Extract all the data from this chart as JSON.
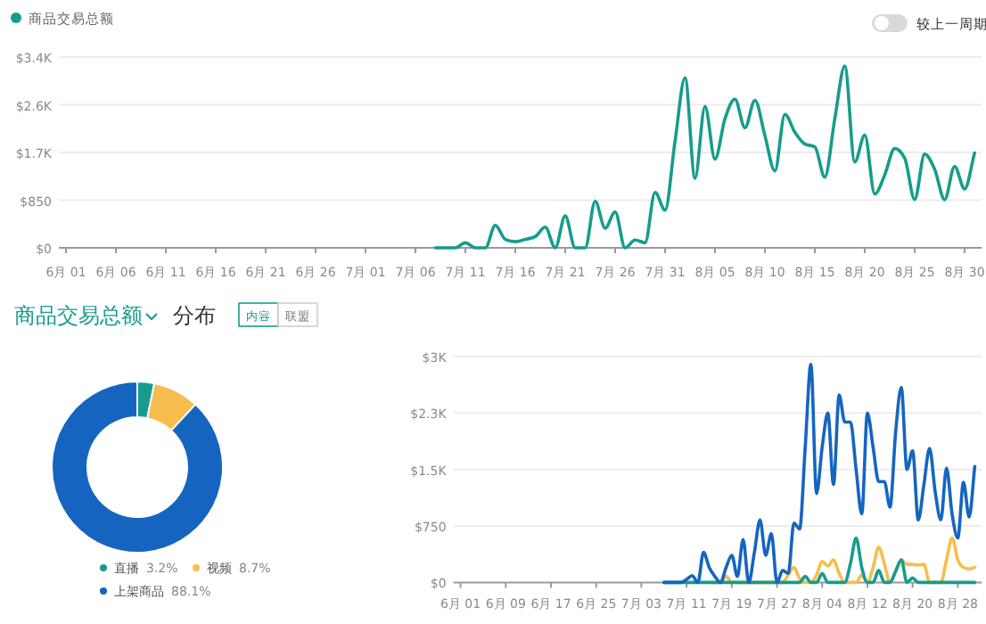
{
  "chart_data": [
    {
      "type": "line",
      "legend": "top left",
      "grid": "y",
      "annotations": [
        "较上一周期"
      ],
      "categories": [
        "6月 01",
        null,
        null,
        null,
        null,
        "6月 06",
        null,
        null,
        null,
        null,
        "6月 11",
        null,
        null,
        null,
        null,
        "6月 16",
        null,
        null,
        null,
        null,
        "6月 21",
        null,
        null,
        null,
        null,
        "6月 26",
        null,
        null,
        null,
        null,
        "7月 01",
        null,
        null,
        null,
        null,
        "7月 06",
        null,
        null,
        null,
        null,
        "7月 11",
        null,
        null,
        null,
        null,
        "7月 16",
        null,
        null,
        null,
        null,
        "7月 21",
        null,
        null,
        null,
        null,
        "7月 26",
        null,
        null,
        null,
        null,
        "7月 31",
        null,
        null,
        null,
        null,
        "8月 05",
        null,
        null,
        null,
        null,
        "8月 10",
        null,
        null,
        null,
        null,
        "8月 15",
        null,
        null,
        null,
        null,
        "8月 20",
        null,
        null,
        null,
        null,
        "8月 25",
        null,
        null,
        null,
        null,
        "8月 30",
        null
      ],
      "ylim": [
        0,
        3400
      ],
      "yticks": [
        {
          "value": 0,
          "label": "$0"
        },
        {
          "value": 850,
          "label": "$850"
        },
        {
          "value": 1700,
          "label": "$1.7K"
        },
        {
          "value": 2550,
          "label": "$2.6K"
        },
        {
          "value": 3400,
          "label": "$3.4K"
        }
      ],
      "series": [
        {
          "name": "商品交易总额",
          "color": "#169c8c",
          "values": [
            null,
            null,
            null,
            null,
            null,
            null,
            null,
            null,
            null,
            null,
            null,
            null,
            null,
            null,
            null,
            null,
            null,
            null,
            null,
            null,
            null,
            null,
            null,
            null,
            null,
            null,
            null,
            null,
            null,
            null,
            null,
            null,
            null,
            null,
            null,
            null,
            null,
            0,
            0,
            0,
            90,
            0,
            0,
            400,
            150,
            110,
            150,
            200,
            370,
            0,
            570,
            0,
            0,
            830,
            350,
            640,
            0,
            140,
            90,
            990,
            670,
            1900,
            3030,
            1240,
            2520,
            1580,
            2300,
            2650,
            2140,
            2630,
            2000,
            1370,
            2380,
            2060,
            1850,
            1800,
            1260,
            2300,
            3240,
            1530,
            2010,
            960,
            1300,
            1770,
            1600,
            860,
            1670,
            1400,
            860,
            1450,
            1050,
            1690
          ]
        }
      ]
    },
    {
      "type": "donut",
      "title": "商品交易总额",
      "subtitle": "分布",
      "annotations": [
        "内容",
        "联盟"
      ],
      "legend": "bottom",
      "categories": [
        "直播",
        "视频",
        "上架商品"
      ],
      "values": [
        3.2,
        8.7,
        88.1
      ],
      "value_labels": [
        "3.2%",
        "8.7%",
        "88.1%"
      ],
      "colors": [
        "#169c8c",
        "#f7bd4c",
        "#1565c0"
      ]
    },
    {
      "type": "line",
      "grid": "y",
      "categories": [
        "6月 01",
        null,
        null,
        null,
        null,
        null,
        null,
        null,
        "6月 09",
        null,
        null,
        null,
        null,
        null,
        null,
        null,
        "6月 17",
        null,
        null,
        null,
        null,
        null,
        null,
        null,
        "6月 25",
        null,
        null,
        null,
        null,
        null,
        null,
        null,
        "7月 03",
        null,
        null,
        null,
        null,
        null,
        null,
        null,
        "7月 11",
        null,
        null,
        null,
        null,
        null,
        null,
        null,
        "7月 19",
        null,
        null,
        null,
        null,
        null,
        null,
        null,
        "7月 27",
        null,
        null,
        null,
        null,
        null,
        null,
        null,
        "8月 04",
        null,
        null,
        null,
        null,
        null,
        null,
        null,
        "8月 12",
        null,
        null,
        null,
        null,
        null,
        null,
        null,
        "8月 20",
        null,
        null,
        null,
        null,
        null,
        null,
        null,
        "8月 28",
        null,
        null,
        null
      ],
      "ylim": [
        0,
        3000
      ],
      "yticks": [
        {
          "value": 0,
          "label": "$0"
        },
        {
          "value": 750,
          "label": "$750"
        },
        {
          "value": 1500,
          "label": "$1.5K"
        },
        {
          "value": 2250,
          "label": "$2.3K"
        },
        {
          "value": 3000,
          "label": "$3K"
        }
      ],
      "series": [
        {
          "color": "#f7bd4c",
          "values": [
            null,
            null,
            null,
            null,
            null,
            null,
            null,
            null,
            null,
            null,
            null,
            null,
            null,
            null,
            null,
            null,
            null,
            null,
            null,
            null,
            null,
            null,
            null,
            null,
            null,
            null,
            null,
            null,
            null,
            null,
            null,
            null,
            null,
            null,
            null,
            null,
            null,
            null,
            null,
            null,
            null,
            null,
            null,
            null,
            null,
            0,
            0,
            80,
            0,
            0,
            0,
            0,
            0,
            0,
            0,
            0,
            0,
            0,
            100,
            200,
            50,
            0,
            0,
            100,
            280,
            220,
            300,
            120,
            0,
            0,
            0,
            100,
            0,
            200,
            470,
            250,
            0,
            150,
            300,
            240,
            240,
            230,
            240,
            0,
            0,
            0,
            300,
            590,
            300,
            200,
            180,
            200
          ]
        },
        {
          "color": "#169c8c",
          "values": [
            null,
            null,
            null,
            null,
            null,
            null,
            null,
            null,
            null,
            null,
            null,
            null,
            null,
            null,
            null,
            null,
            null,
            null,
            null,
            null,
            null,
            null,
            null,
            null,
            null,
            null,
            null,
            null,
            null,
            null,
            null,
            null,
            null,
            null,
            null,
            null,
            0,
            0,
            0,
            0,
            0,
            0,
            0,
            0,
            0,
            0,
            0,
            0,
            0,
            0,
            0,
            0,
            0,
            0,
            0,
            0,
            0,
            0,
            0,
            0,
            0,
            80,
            0,
            0,
            120,
            0,
            0,
            0,
            0,
            250,
            590,
            200,
            0,
            0,
            160,
            0,
            0,
            150,
            300,
            0,
            60,
            0,
            0,
            0,
            0,
            0,
            0,
            0,
            0,
            0,
            0,
            0
          ]
        },
        {
          "color": "#1565c0",
          "values": [
            null,
            null,
            null,
            null,
            null,
            null,
            null,
            null,
            null,
            null,
            null,
            null,
            null,
            null,
            null,
            null,
            null,
            null,
            null,
            null,
            null,
            null,
            null,
            null,
            null,
            null,
            null,
            null,
            null,
            null,
            null,
            null,
            null,
            null,
            null,
            null,
            0,
            0,
            0,
            0,
            40,
            90,
            0,
            400,
            200,
            80,
            0,
            200,
            360,
            80,
            570,
            0,
            400,
            830,
            360,
            650,
            0,
            160,
            120,
            790,
            710,
            1800,
            2900,
            1180,
            1800,
            2250,
            1300,
            2490,
            2130,
            2130,
            1500,
            910,
            2250,
            1800,
            1340,
            1340,
            1000,
            2000,
            2590,
            1500,
            1750,
            830,
            1300,
            1780,
            1200,
            830,
            1520,
            900,
            590,
            1330,
            870,
            1540
          ]
        }
      ]
    }
  ]
}
